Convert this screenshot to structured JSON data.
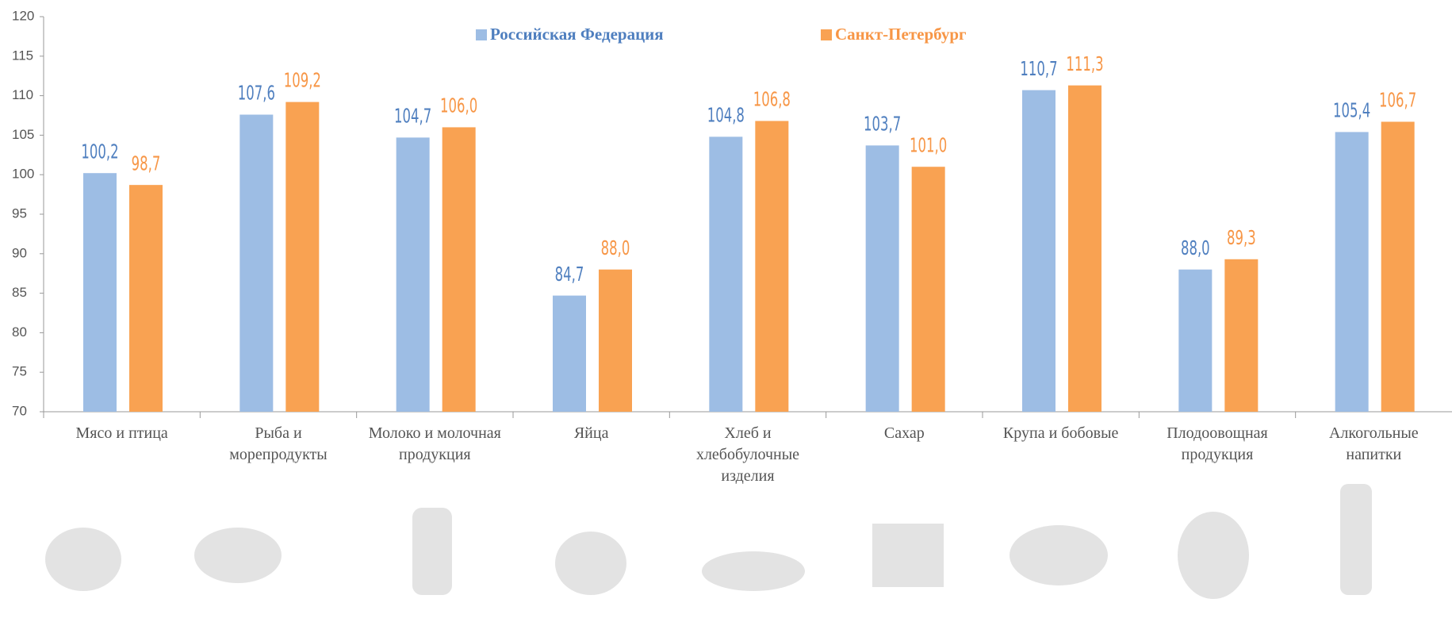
{
  "chart_data": {
    "type": "bar",
    "categories": [
      "Мясо и птица",
      "Рыба и морепродукты",
      "Молоко и молочная продукция",
      "Яйца",
      "Хлеб и хлебобулочные изделия",
      "Сахар",
      "Крупа и бобовые",
      "Плодоовощная продукция",
      "Алкогольные напитки"
    ],
    "series": [
      {
        "name": "Российская Федерация",
        "color": "#9dbde4",
        "label_color": "#4f7fbf",
        "values": [
          100.2,
          107.6,
          104.7,
          84.7,
          104.8,
          103.7,
          110.7,
          88.0,
          105.4
        ],
        "value_labels": [
          "100,2",
          "107,6",
          "104,7",
          "84,7",
          "104,8",
          "103,7",
          "110,7",
          "88,0",
          "105,4"
        ]
      },
      {
        "name": "Санкт-Петербург",
        "color": "#f9a252",
        "label_color": "#f79646",
        "values": [
          98.7,
          109.2,
          106.0,
          88.0,
          106.8,
          101.0,
          111.3,
          89.3,
          106.7
        ],
        "value_labels": [
          "98,7",
          "109,2",
          "106,0",
          "88,0",
          "106,8",
          "101,0",
          "111,3",
          "89,3",
          "106,7"
        ]
      }
    ],
    "ylim": [
      70,
      120
    ],
    "yticks": [
      70,
      75,
      80,
      85,
      90,
      95,
      100,
      105,
      110,
      115,
      120
    ],
    "grid": false,
    "legend": "top"
  }
}
